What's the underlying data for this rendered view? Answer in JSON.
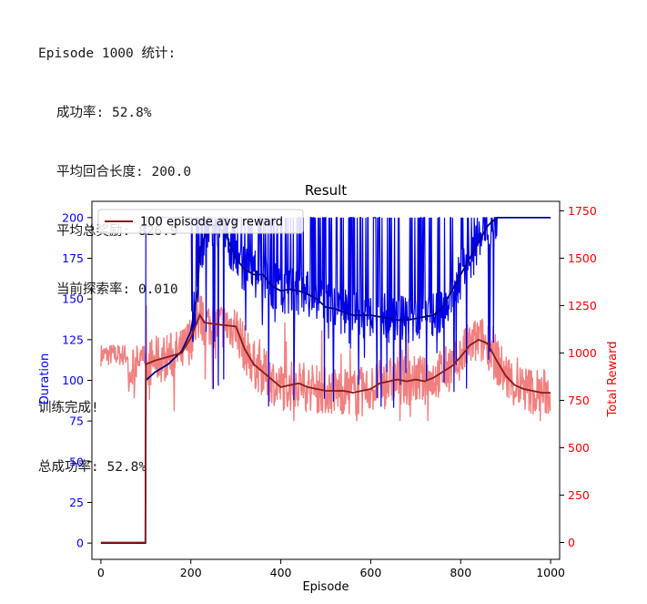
{
  "console": {
    "line1": "Episode 1000 统计:",
    "line2": "成功率: 52.8%",
    "line3": "平均回合长度: 200.0",
    "line4": "平均总奖励: 826.9",
    "line5": "当前探索率: 0.010",
    "line6": "训练完成!",
    "line7": "总成功率: 52.8%"
  },
  "chart_data": {
    "type": "line",
    "title": "Result",
    "xlabel": "Episode",
    "ylabel": "Duration",
    "ylabel_right": "Total Reward",
    "xlim": [
      -20,
      1020
    ],
    "ylim": [
      -10,
      210
    ],
    "ylim_right": [
      -89,
      1800
    ],
    "xticks": [
      0,
      200,
      400,
      600,
      800,
      1000
    ],
    "yticks": [
      0,
      25,
      50,
      75,
      100,
      125,
      150,
      175,
      200
    ],
    "yticks_right": [
      0,
      250,
      500,
      750,
      1000,
      1250,
      1500,
      1750
    ],
    "legend_position": "top-left",
    "colors": {
      "duration": "#0000e6",
      "duration_avg": "#00008b",
      "reward": "#f08080",
      "reward_avg": "#8b1a1a",
      "left_axis": "#0000ff",
      "right_axis": "#ff0000"
    },
    "series": [
      {
        "name": "100 episode avg reward",
        "axis": "right",
        "style": "line",
        "x": [
          0,
          99,
          100,
          120,
          150,
          180,
          200,
          220,
          230,
          260,
          300,
          320,
          340,
          360,
          380,
          400,
          420,
          440,
          460,
          480,
          500,
          540,
          560,
          580,
          600,
          620,
          640,
          660,
          680,
          700,
          720,
          740,
          760,
          780,
          800,
          820,
          840,
          860,
          880,
          900,
          920,
          940,
          960,
          980,
          1000
        ],
        "values": [
          0,
          0,
          940,
          960,
          980,
          1000,
          1080,
          1200,
          1160,
          1150,
          1140,
          1020,
          940,
          900,
          860,
          820,
          830,
          840,
          820,
          810,
          800,
          800,
          790,
          800,
          810,
          840,
          850,
          860,
          850,
          860,
          850,
          870,
          900,
          930,
          980,
          1040,
          1070,
          1050,
          960,
          880,
          830,
          810,
          800,
          790,
          790
        ]
      },
      {
        "name": "",
        "axis": "left",
        "style": "line",
        "x": [
          0,
          99,
          100,
          120,
          150,
          180,
          200,
          215,
          220,
          240,
          260,
          280,
          300,
          320,
          340,
          360,
          380,
          400,
          420,
          440,
          460,
          480,
          500,
          520,
          540,
          560,
          580,
          600,
          620,
          640,
          660,
          680,
          700,
          720,
          740,
          760,
          780,
          800,
          820,
          840,
          860,
          880,
          900,
          920,
          940,
          960,
          980,
          1000
        ],
        "values": [
          0,
          0,
          100,
          105,
          110,
          118,
          130,
          155,
          180,
          195,
          195,
          188,
          175,
          168,
          165,
          165,
          158,
          155,
          156,
          155,
          153,
          150,
          145,
          144,
          142,
          140,
          140,
          140,
          139,
          138,
          137,
          137,
          138,
          139,
          140,
          145,
          155,
          165,
          175,
          185,
          195,
          200,
          200,
          200,
          200,
          200,
          200,
          200
        ]
      }
    ]
  }
}
